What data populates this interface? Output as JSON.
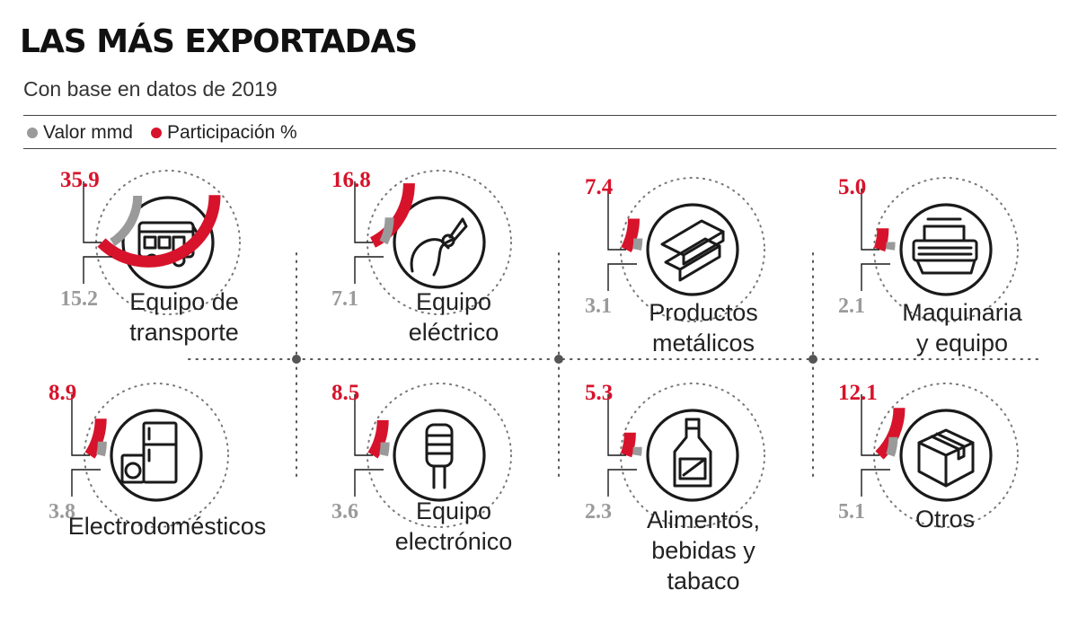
{
  "header": {
    "title": "LAS MÁS EXPORTADAS",
    "subtitle": "Con base en datos de 2019"
  },
  "legend": {
    "value_label": "Valor mmd",
    "share_label": "Participación %"
  },
  "colors": {
    "share": "#d7132b",
    "value": "#9a9a9a",
    "ink": "#1a1a1a"
  },
  "chart_data": {
    "type": "radial-bar",
    "series": [
      {
        "name": "Valor mmd",
        "color": "#9a9a9a"
      },
      {
        "name": "Participación %",
        "color": "#d7132b"
      }
    ],
    "categories": [
      {
        "lines": [
          "Equipo de",
          "transporte"
        ],
        "share": 35.9,
        "value": 15.2,
        "icon": "bus-icon"
      },
      {
        "lines": [
          "Equipo",
          "eléctrico"
        ],
        "share": 16.8,
        "value": 7.1,
        "icon": "pliers-icon"
      },
      {
        "lines": [
          "Productos",
          "metálicos"
        ],
        "share": 7.4,
        "value": 3.1,
        "icon": "metal-beams-icon"
      },
      {
        "lines": [
          "Maquinaria",
          "y equipo"
        ],
        "share": 5.0,
        "value": 2.1,
        "icon": "machinery-icon"
      },
      {
        "lines": [
          "Electrodomésticos"
        ],
        "share": 8.9,
        "value": 3.8,
        "icon": "appliances-icon"
      },
      {
        "lines": [
          "Equipo",
          "electrónico"
        ],
        "share": 8.5,
        "value": 3.6,
        "icon": "electronic-component-icon"
      },
      {
        "lines": [
          "Alimentos,",
          "bebidas y",
          "tabaco"
        ],
        "share": 5.3,
        "value": 2.3,
        "icon": "bottle-icon"
      },
      {
        "lines": [
          "Otros"
        ],
        "share": 12.1,
        "value": 5.1,
        "icon": "box-icon"
      }
    ]
  }
}
